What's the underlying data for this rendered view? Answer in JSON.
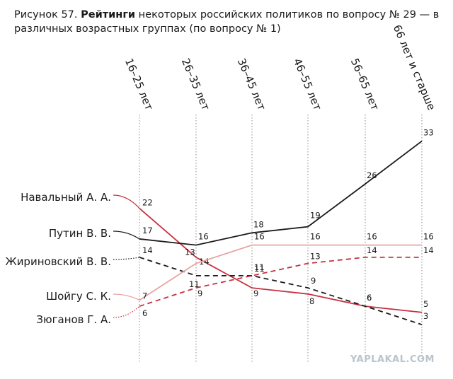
{
  "caption": {
    "number": "Рисунок 57.",
    "bold": "Рейтинги",
    "rest": "некоторых российских политиков по вопросу № 29 — в различных возрастных группах (по вопросу № 1)"
  },
  "watermark": "YAPLAKAL.COM",
  "chart_data": {
    "type": "line",
    "categories": [
      "16–25 лет",
      "26–35 лет",
      "36–45 лет",
      "46–55 лет",
      "56–65 лет",
      "66 лет и старше"
    ],
    "ylim": [
      0,
      35
    ],
    "grid": false,
    "legend_placement": "left",
    "series": [
      {
        "name": "Навальный А. А.",
        "values": [
          22,
          14,
          9,
          8,
          6,
          5
        ],
        "color": "#c8303f",
        "dash": "solid"
      },
      {
        "name": "Путин В. В.",
        "values": [
          17,
          16,
          18,
          19,
          26,
          33
        ],
        "color": "#1a1a1a",
        "dash": "solid"
      },
      {
        "name": "Жириновский В. В.",
        "values": [
          14,
          11,
          11,
          9,
          6,
          3
        ],
        "color": "#1a1a1a",
        "dash": "dashed"
      },
      {
        "name": "Шойгу С. К.",
        "values": [
          7,
          13,
          16,
          16,
          16,
          16
        ],
        "color": "#e8a4a0",
        "dash": "solid"
      },
      {
        "name": "Зюганов Г. А.",
        "values": [
          6,
          9,
          11,
          13,
          14,
          14
        ],
        "color": "#c8303f",
        "dash": "dashed"
      }
    ]
  }
}
